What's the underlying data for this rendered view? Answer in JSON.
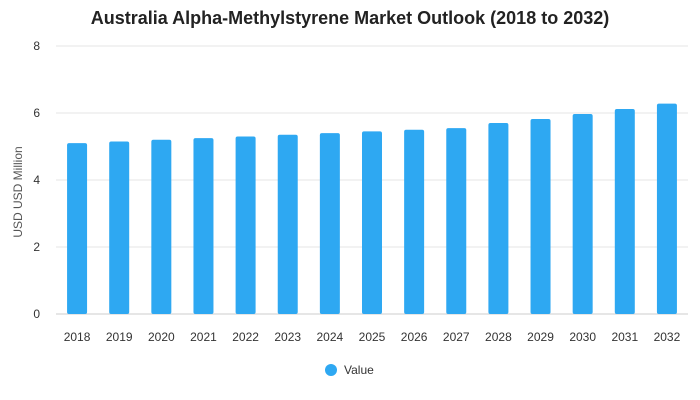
{
  "chart_data": {
    "type": "bar",
    "title": "Australia Alpha-Methylstyrene Market Outlook (2018 to 2032)",
    "xlabel": "",
    "ylabel": "USD USD Million",
    "categories": [
      "2018",
      "2019",
      "2020",
      "2021",
      "2022",
      "2023",
      "2024",
      "2025",
      "2026",
      "2027",
      "2028",
      "2029",
      "2030",
      "2031",
      "2032"
    ],
    "series": [
      {
        "name": "Value",
        "values": [
          5.1,
          5.15,
          5.2,
          5.25,
          5.3,
          5.35,
          5.4,
          5.45,
          5.5,
          5.55,
          5.7,
          5.82,
          5.97,
          6.12,
          6.28
        ]
      }
    ],
    "ylim": [
      0,
      8
    ],
    "yticks": [
      "0",
      "2",
      "4",
      "6",
      "8"
    ],
    "grid": true,
    "legend": "bottom-center",
    "colors": {
      "bar": "#2ea8f2"
    }
  }
}
